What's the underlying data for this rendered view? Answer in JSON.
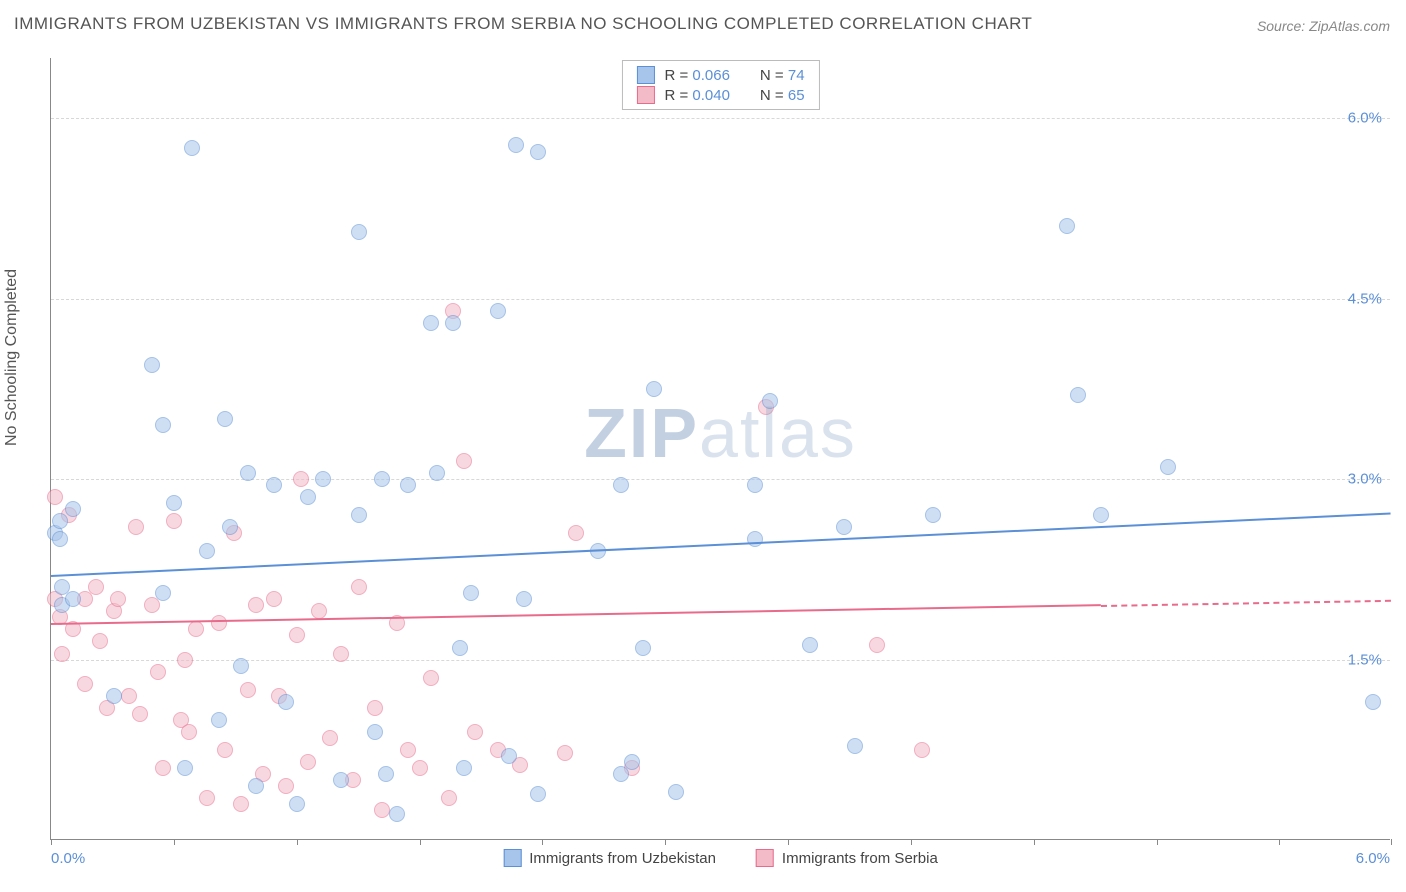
{
  "title": "IMMIGRANTS FROM UZBEKISTAN VS IMMIGRANTS FROM SERBIA NO SCHOOLING COMPLETED CORRELATION CHART",
  "source_label": "Source:",
  "source_name": "ZipAtlas.com",
  "ylabel": "No Schooling Completed",
  "watermark_a": "ZIP",
  "watermark_b": "atlas",
  "chart": {
    "type": "scatter",
    "xlim": [
      0.0,
      6.0
    ],
    "ylim": [
      0.0,
      6.5
    ],
    "x_axis_label_left": "0.0%",
    "x_axis_label_right": "6.0%",
    "y_ticks": [
      1.5,
      3.0,
      4.5,
      6.0
    ],
    "y_tick_labels": [
      "1.5%",
      "3.0%",
      "4.5%",
      "6.0%"
    ],
    "x_tick_positions": [
      0,
      0.55,
      1.1,
      1.65,
      2.2,
      2.75,
      3.3,
      3.85,
      4.4,
      4.95,
      5.5,
      6.0
    ],
    "grid_color": "#d8d8d8",
    "background_color": "#ffffff",
    "marker_radius": 8,
    "marker_opacity": 0.55,
    "series": [
      {
        "name": "Immigrants from Uzbekistan",
        "color_fill": "#a7c5ea",
        "color_stroke": "#5b8fd6",
        "R": "0.066",
        "N": "74",
        "trend": {
          "x1": 0.0,
          "y1": 2.2,
          "x2": 6.0,
          "y2": 2.72,
          "dash_from_x": 6.0
        },
        "points": [
          [
            0.02,
            2.55
          ],
          [
            0.04,
            2.5
          ],
          [
            0.04,
            2.65
          ],
          [
            0.05,
            1.95
          ],
          [
            0.05,
            2.1
          ],
          [
            0.1,
            2.0
          ],
          [
            0.1,
            2.75
          ],
          [
            0.63,
            5.75
          ],
          [
            0.45,
            3.95
          ],
          [
            0.5,
            3.45
          ],
          [
            0.28,
            1.2
          ],
          [
            0.5,
            2.05
          ],
          [
            0.55,
            2.8
          ],
          [
            0.6,
            0.6
          ],
          [
            0.7,
            2.4
          ],
          [
            0.75,
            1.0
          ],
          [
            0.78,
            3.5
          ],
          [
            0.8,
            2.6
          ],
          [
            0.85,
            1.45
          ],
          [
            0.88,
            3.05
          ],
          [
            0.92,
            0.45
          ],
          [
            1.0,
            2.95
          ],
          [
            1.05,
            1.15
          ],
          [
            1.1,
            0.3
          ],
          [
            1.15,
            2.85
          ],
          [
            1.22,
            3.0
          ],
          [
            1.3,
            0.5
          ],
          [
            1.38,
            5.05
          ],
          [
            1.38,
            2.7
          ],
          [
            1.45,
            0.9
          ],
          [
            1.48,
            3.0
          ],
          [
            1.5,
            0.55
          ],
          [
            1.55,
            0.22
          ],
          [
            1.6,
            2.95
          ],
          [
            1.7,
            4.3
          ],
          [
            1.73,
            3.05
          ],
          [
            1.8,
            4.3
          ],
          [
            1.85,
            0.6
          ],
          [
            1.83,
            1.6
          ],
          [
            1.88,
            2.05
          ],
          [
            2.0,
            4.4
          ],
          [
            2.05,
            0.7
          ],
          [
            2.08,
            5.78
          ],
          [
            2.12,
            2.0
          ],
          [
            2.18,
            0.38
          ],
          [
            2.18,
            5.72
          ],
          [
            2.45,
            2.4
          ],
          [
            2.55,
            2.95
          ],
          [
            2.55,
            0.55
          ],
          [
            2.6,
            0.65
          ],
          [
            2.65,
            1.6
          ],
          [
            2.7,
            3.75
          ],
          [
            2.8,
            0.4
          ],
          [
            3.15,
            2.95
          ],
          [
            3.15,
            2.5
          ],
          [
            3.22,
            3.65
          ],
          [
            3.4,
            1.62
          ],
          [
            3.55,
            2.6
          ],
          [
            3.6,
            0.78
          ],
          [
            3.95,
            2.7
          ],
          [
            4.55,
            5.1
          ],
          [
            4.6,
            3.7
          ],
          [
            4.7,
            2.7
          ],
          [
            5.0,
            3.1
          ],
          [
            5.92,
            1.15
          ]
        ]
      },
      {
        "name": "Immigrants from Serbia",
        "color_fill": "#f3bac8",
        "color_stroke": "#e86b8c",
        "R": "0.040",
        "N": "65",
        "trend": {
          "x1": 0.0,
          "y1": 1.8,
          "x2": 6.0,
          "y2": 2.0,
          "dash_from_x": 4.7
        },
        "points": [
          [
            0.02,
            2.85
          ],
          [
            0.02,
            2.0
          ],
          [
            0.04,
            1.85
          ],
          [
            0.05,
            1.55
          ],
          [
            0.08,
            2.7
          ],
          [
            0.1,
            1.75
          ],
          [
            0.15,
            1.3
          ],
          [
            0.15,
            2.0
          ],
          [
            0.2,
            2.1
          ],
          [
            0.22,
            1.65
          ],
          [
            0.25,
            1.1
          ],
          [
            0.28,
            1.9
          ],
          [
            0.3,
            2.0
          ],
          [
            0.35,
            1.2
          ],
          [
            0.38,
            2.6
          ],
          [
            0.4,
            1.05
          ],
          [
            0.45,
            1.95
          ],
          [
            0.48,
            1.4
          ],
          [
            0.5,
            0.6
          ],
          [
            0.55,
            2.65
          ],
          [
            0.58,
            1.0
          ],
          [
            0.6,
            1.5
          ],
          [
            0.62,
            0.9
          ],
          [
            0.65,
            1.75
          ],
          [
            0.7,
            0.35
          ],
          [
            0.75,
            1.8
          ],
          [
            0.78,
            0.75
          ],
          [
            0.82,
            2.55
          ],
          [
            0.85,
            0.3
          ],
          [
            0.88,
            1.25
          ],
          [
            0.92,
            1.95
          ],
          [
            0.95,
            0.55
          ],
          [
            1.0,
            2.0
          ],
          [
            1.02,
            1.2
          ],
          [
            1.05,
            0.45
          ],
          [
            1.1,
            1.7
          ],
          [
            1.12,
            3.0
          ],
          [
            1.15,
            0.65
          ],
          [
            1.2,
            1.9
          ],
          [
            1.25,
            0.85
          ],
          [
            1.3,
            1.55
          ],
          [
            1.35,
            0.5
          ],
          [
            1.38,
            2.1
          ],
          [
            1.45,
            1.1
          ],
          [
            1.48,
            0.25
          ],
          [
            1.55,
            1.8
          ],
          [
            1.6,
            0.75
          ],
          [
            1.65,
            0.6
          ],
          [
            1.7,
            1.35
          ],
          [
            1.78,
            0.35
          ],
          [
            1.8,
            4.4
          ],
          [
            1.9,
            0.9
          ],
          [
            1.85,
            3.15
          ],
          [
            2.0,
            0.75
          ],
          [
            2.1,
            0.62
          ],
          [
            2.3,
            0.72
          ],
          [
            2.35,
            2.55
          ],
          [
            2.6,
            0.6
          ],
          [
            3.2,
            3.6
          ],
          [
            3.7,
            1.62
          ],
          [
            3.9,
            0.75
          ]
        ]
      }
    ]
  },
  "legend_labels": {
    "R": "R =",
    "N": "N ="
  }
}
